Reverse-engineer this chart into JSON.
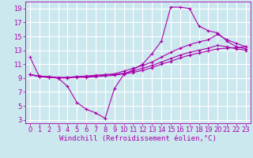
{
  "background_color": "#cce8ef",
  "grid_color": "#ffffff",
  "line_color": "#aa00aa",
  "xlabel": "Windchill (Refroidissement éolien,°C)",
  "xlabel_fontsize": 6.5,
  "tick_fontsize": 6.0,
  "xlim": [
    -0.5,
    23.5
  ],
  "ylim": [
    2.5,
    20.0
  ],
  "yticks": [
    3,
    5,
    7,
    9,
    11,
    13,
    15,
    17,
    19
  ],
  "xticks": [
    0,
    1,
    2,
    3,
    4,
    5,
    6,
    7,
    8,
    9,
    10,
    11,
    12,
    13,
    14,
    15,
    16,
    17,
    18,
    19,
    20,
    21,
    22,
    23
  ],
  "line1_x": [
    0,
    1,
    2,
    3,
    4,
    5,
    6,
    7,
    8,
    9,
    10,
    11,
    12,
    13,
    14,
    15,
    16,
    17,
    18,
    19,
    20,
    21,
    22,
    23
  ],
  "line1_y": [
    12.0,
    9.2,
    9.2,
    9.0,
    7.8,
    5.5,
    4.5,
    4.0,
    3.2,
    7.5,
    9.5,
    10.2,
    11.0,
    12.5,
    14.3,
    19.2,
    19.2,
    19.0,
    16.5,
    15.8,
    15.5,
    14.3,
    13.5,
    13.2
  ],
  "line2_x": [
    0,
    1,
    2,
    3,
    4,
    5,
    6,
    7,
    8,
    9,
    10,
    11,
    12,
    13,
    14,
    15,
    16,
    17,
    18,
    19,
    20,
    21,
    22,
    23
  ],
  "line2_y": [
    9.5,
    9.3,
    9.2,
    9.1,
    9.1,
    9.2,
    9.3,
    9.4,
    9.5,
    9.6,
    10.0,
    10.4,
    10.8,
    11.3,
    12.0,
    12.7,
    13.3,
    13.8,
    14.2,
    14.5,
    15.3,
    14.5,
    14.0,
    13.5
  ],
  "line3_x": [
    0,
    1,
    2,
    3,
    4,
    5,
    6,
    7,
    8,
    9,
    10,
    11,
    12,
    13,
    14,
    15,
    16,
    17,
    18,
    19,
    20,
    21,
    22,
    23
  ],
  "line3_y": [
    9.5,
    9.2,
    9.1,
    9.0,
    9.1,
    9.2,
    9.2,
    9.3,
    9.4,
    9.5,
    9.7,
    10.0,
    10.4,
    10.8,
    11.3,
    11.8,
    12.3,
    12.7,
    13.0,
    13.3,
    13.7,
    13.5,
    13.2,
    13.0
  ],
  "line4_x": [
    0,
    1,
    2,
    3,
    4,
    5,
    6,
    7,
    8,
    9,
    10,
    11,
    12,
    13,
    14,
    15,
    16,
    17,
    18,
    19,
    20,
    21,
    22,
    23
  ],
  "line4_y": [
    9.5,
    9.2,
    9.1,
    9.0,
    9.0,
    9.1,
    9.1,
    9.2,
    9.3,
    9.4,
    9.6,
    9.8,
    10.1,
    10.5,
    11.0,
    11.4,
    11.9,
    12.3,
    12.6,
    12.9,
    13.2,
    13.3,
    13.4,
    13.5
  ]
}
